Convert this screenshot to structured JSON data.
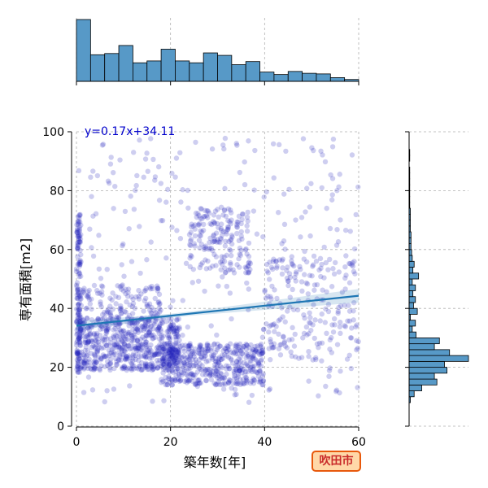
{
  "chart_data": {
    "type": "scatter",
    "xlabel": "築年数[年]",
    "ylabel": "専有面積[m2]",
    "xlim": [
      0,
      60
    ],
    "ylim": [
      0,
      100
    ],
    "xticks": [
      0,
      20,
      40,
      60
    ],
    "yticks": [
      0,
      20,
      40,
      60,
      80,
      100
    ],
    "grid": true,
    "annotation": "y=0.17x+34.11",
    "regression": {
      "slope": 0.17,
      "intercept": 34.11
    },
    "badge": "吹田市",
    "colors": {
      "points": "#2222bb",
      "regression": "#1f77b4",
      "histogram": "#5799c7",
      "annotation": "#0000cc",
      "badge_fill": "#ffd8a8",
      "badge_border": "#e8590c",
      "badge_text": "#c92a2a"
    },
    "scatter_clusters": [
      {
        "x": [
          0,
          1
        ],
        "y": [
          18,
          72
        ],
        "n": 140
      },
      {
        "x": [
          0,
          22
        ],
        "y": [
          19,
          37
        ],
        "n": 600
      },
      {
        "x": [
          18,
          40
        ],
        "y": [
          14,
          28
        ],
        "n": 450
      },
      {
        "x": [
          1,
          18
        ],
        "y": [
          35,
          48
        ],
        "n": 120
      },
      {
        "x": [
          24,
          37
        ],
        "y": [
          52,
          74
        ],
        "n": 170
      },
      {
        "x": [
          40,
          60
        ],
        "y": [
          22,
          58
        ],
        "n": 180
      },
      {
        "x": [
          0,
          60
        ],
        "y": [
          8,
          98
        ],
        "n": 320
      }
    ],
    "x_histogram": {
      "bin_edges": [
        0,
        3,
        6,
        9,
        12,
        15,
        18,
        21,
        24,
        27,
        30,
        33,
        36,
        39,
        42,
        45,
        48,
        51,
        54,
        57,
        60
      ],
      "counts": [
        100,
        43,
        45,
        58,
        30,
        33,
        52,
        33,
        30,
        46,
        42,
        27,
        32,
        15,
        11,
        16,
        13,
        12,
        6,
        3
      ]
    },
    "y_histogram": {
      "bin_edges": [
        8,
        10,
        12,
        14,
        16,
        18,
        20,
        22,
        24,
        26,
        28,
        30,
        32,
        34,
        36,
        38,
        40,
        42,
        44,
        46,
        48,
        50,
        52,
        54,
        56,
        58,
        60,
        62,
        64,
        66,
        68,
        70,
        72,
        74,
        76,
        78,
        80,
        82,
        84,
        86,
        88,
        90,
        92,
        94
      ],
      "counts": [
        2,
        8,
        20,
        44,
        40,
        60,
        56,
        94,
        64,
        40,
        48,
        11,
        5,
        10,
        2,
        13,
        7,
        10,
        6,
        10,
        5,
        15,
        6,
        8,
        5,
        4,
        3,
        3,
        3,
        2,
        2,
        2,
        2,
        1,
        1,
        1,
        1,
        1,
        1,
        1,
        0,
        1,
        1
      ]
    }
  }
}
